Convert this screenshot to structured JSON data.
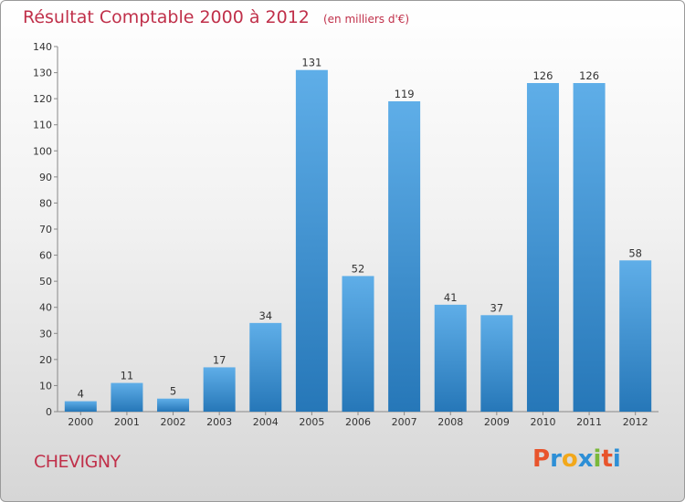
{
  "header": {
    "title": "Résultat Comptable 2000 à 2012",
    "subtitle": "(en milliers d'€)"
  },
  "footer": {
    "commune": "CHEVIGNY",
    "logo_text": "Proxiti",
    "logo_colors": [
      "#e8542c",
      "#2d8fd6",
      "#f2a81b",
      "#2d8fd6",
      "#7ab83a",
      "#e8542c",
      "#2d8fd6"
    ]
  },
  "colors": {
    "bar_top": "#5faee8",
    "bar_bottom": "#2677b8",
    "title": "#c0304a"
  },
  "chart_data": {
    "type": "bar",
    "title": "Résultat Comptable 2000 à 2012",
    "subtitle": "(en milliers d'€)",
    "categories": [
      "2000",
      "2001",
      "2002",
      "2003",
      "2004",
      "2005",
      "2006",
      "2007",
      "2008",
      "2009",
      "2010",
      "2011",
      "2012"
    ],
    "values": [
      4,
      11,
      5,
      17,
      34,
      131,
      52,
      119,
      41,
      37,
      126,
      126,
      58
    ],
    "xlabel": "",
    "ylabel": "",
    "ylim": [
      0,
      140
    ],
    "yticks": [
      0,
      10,
      20,
      30,
      40,
      50,
      60,
      70,
      80,
      90,
      100,
      110,
      120,
      130,
      140
    ],
    "grid": false,
    "legend": "none"
  }
}
